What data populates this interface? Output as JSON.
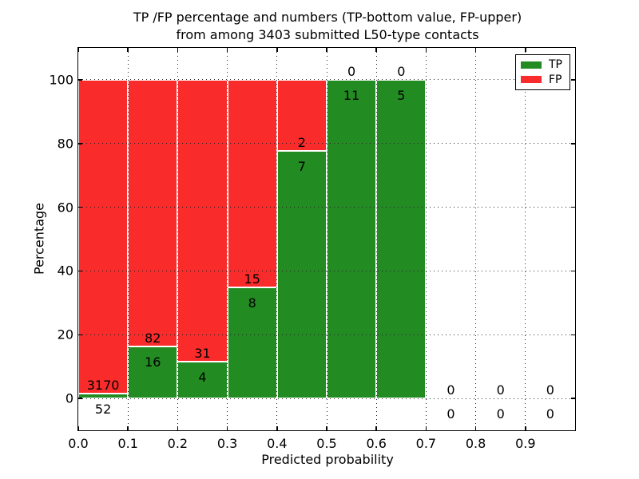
{
  "figure": {
    "title_line1": "TP /FP percentage and numbers (TP-bottom value, FP-upper)",
    "title_line2": "from among 3403 submitted L50-type contacts",
    "xlabel": "Predicted probability",
    "ylabel": "Percentage"
  },
  "colors": {
    "tp_green": "#228b22",
    "fp_red": "#fa2b2b",
    "axis_black": "#000000",
    "grid": "#222222",
    "bar_edge_white": "#ffffff",
    "background": "#ffffff"
  },
  "chart_data": {
    "type": "bar",
    "stacked": true,
    "title": "TP /FP percentage and numbers (TP-bottom value, FP-upper) from among 3403 submitted L50-type contacts",
    "xlabel": "Predicted probability",
    "ylabel": "Percentage",
    "total_contacts": 3403,
    "bin_edges": [
      0.0,
      0.1,
      0.2,
      0.3,
      0.4,
      0.5,
      0.6,
      0.7,
      0.8,
      0.9,
      1.0
    ],
    "categories": [
      "0.0-0.1",
      "0.1-0.2",
      "0.2-0.3",
      "0.3-0.4",
      "0.4-0.5",
      "0.5-0.6",
      "0.6-0.7",
      "0.7-0.8",
      "0.8-0.9",
      "0.9-1.0"
    ],
    "series": [
      {
        "name": "TP",
        "color": "#228b22",
        "counts": [
          52,
          16,
          4,
          8,
          7,
          11,
          5,
          0,
          0,
          0
        ]
      },
      {
        "name": "FP",
        "color": "#fa2b2b",
        "counts": [
          3170,
          82,
          31,
          15,
          2,
          0,
          0,
          0,
          0,
          0
        ]
      }
    ],
    "tp_percent_per_bin": [
      1.61,
      16.33,
      11.43,
      34.78,
      77.78,
      100.0,
      100.0,
      null,
      null,
      null
    ],
    "bars_stack_to": 100,
    "xtick_labels": [
      "0.0",
      "0.1",
      "0.2",
      "0.3",
      "0.4",
      "0.5",
      "0.6",
      "0.7",
      "0.8",
      "0.9"
    ],
    "ytick_values": [
      0,
      20,
      40,
      60,
      80,
      100
    ],
    "ytick_labels": [
      "0",
      "20",
      "40",
      "60",
      "80",
      "100"
    ],
    "xlim": [
      0.0,
      1.0
    ],
    "ylim": [
      -10,
      110
    ],
    "grid": true,
    "grid_style": "dotted",
    "legend_position": "upper right",
    "legend_entries": [
      {
        "label": "TP",
        "color": "#228b22"
      },
      {
        "label": "FP",
        "color": "#fa2b2b"
      }
    ]
  }
}
